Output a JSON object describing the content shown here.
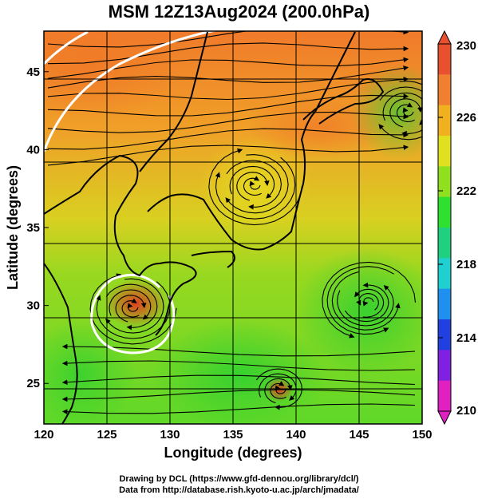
{
  "title": "MSM 12Z13Aug2024 (200.0hPa)",
  "xaxis": {
    "label": "Longitude (degrees)",
    "ticks": [
      "120",
      "125",
      "130",
      "135",
      "140",
      "145",
      "150"
    ],
    "range": [
      120,
      150
    ]
  },
  "yaxis": {
    "label": "Latitude  (degrees)",
    "ticks": [
      "25",
      "30",
      "35",
      "40",
      "45"
    ],
    "range": [
      22.4,
      47.6
    ]
  },
  "colorbar": {
    "ticks": [
      "210",
      "214",
      "218",
      "222",
      "226",
      "230"
    ],
    "range": [
      210,
      230
    ],
    "colors": [
      "#e020c0",
      "#8020e0",
      "#2040e0",
      "#2090f0",
      "#20d0d0",
      "#20d080",
      "#30e030",
      "#90e020",
      "#e0e020",
      "#f0b020",
      "#f08030",
      "#e85030"
    ]
  },
  "map_features": {
    "streamlines": "black",
    "contours": "white",
    "coastlines": "black",
    "grid": "on"
  },
  "credits": [
    "Drawing by DCL (https://www.gfd-dennou.org/library/dcl/)",
    "Data from http://database.rish.kyoto-u.ac.jp/arch/jmadata/"
  ]
}
